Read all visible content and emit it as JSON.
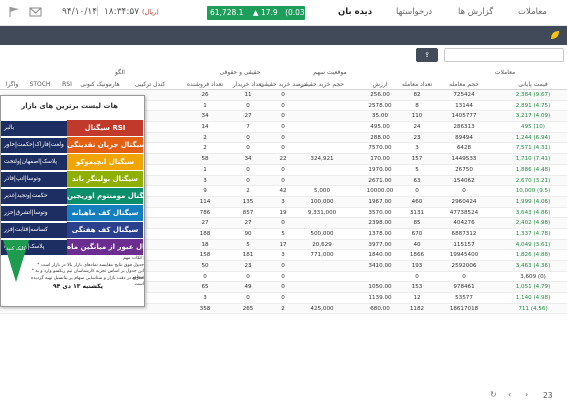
{
  "header": {
    "time": "۱۸:۳۴:۵۷",
    "date": "۹۴/۱۰/۱۴",
    "rial_label": "(ریال)",
    "ticker": {
      "value": "61,728.1",
      "change": "17.9",
      "percent": "(0.03%)"
    },
    "nav": [
      "دیده بان",
      "درخواستها",
      "گزارش ها",
      "معاملات"
    ],
    "icons": [
      "flag-icon",
      "mail-icon"
    ]
  },
  "toolbar": {
    "excel_label": "اکسل",
    "search_placeholder": ""
  },
  "table": {
    "group_headers": {
      "trades": "معاملات",
      "last_orders": "موقعیت سهم",
      "real_legal": "حقیقی و حقوقی",
      "algo": "الگو"
    },
    "columns": [
      "قیمت پایانی",
      "حجم معامله",
      "تعداد معامله",
      "ارزش",
      "حجم خرید حقیقی",
      "درصد خرید حقیقی",
      "تعداد خریدار",
      "تعداد فروشنده",
      "کندل ترکیبی",
      "هارمونیک کنونی",
      "RSI",
      "STOCH",
      "واگرا"
    ],
    "rows": [
      {
        "close": "2,384 (9.67)",
        "vol": "725424",
        "cnt": "82",
        "val": "256.00",
        "rb": "",
        "rp": "0",
        "buyers": "11",
        "sellers": "26",
        "dir": "pos"
      },
      {
        "close": "2,891 (4.75)",
        "vol": "13144",
        "cnt": "8",
        "val": "2578.00",
        "rb": "",
        "rp": "0",
        "buyers": "0",
        "sellers": "1",
        "dir": "pos"
      },
      {
        "close": "3,217 (4.09)",
        "vol": "1405777",
        "cnt": "110",
        "val": "35.00",
        "rb": "",
        "rp": "0",
        "buyers": "27",
        "sellers": "34",
        "dir": "pos"
      },
      {
        "close": "495 (10)",
        "vol": "286313",
        "cnt": "24",
        "val": "495.00",
        "rb": "",
        "rp": "0",
        "buyers": "7",
        "sellers": "14",
        "dir": "pos"
      },
      {
        "close": "1,244 (6.94)",
        "vol": "89494",
        "cnt": "23",
        "val": "288.00",
        "rb": "",
        "rp": "0",
        "buyers": "0",
        "sellers": "2",
        "dir": "pos"
      },
      {
        "close": "7,571 (4.31)",
        "vol": "6428",
        "cnt": "3",
        "val": "7570.00",
        "rb": "",
        "rp": "0",
        "buyers": "0",
        "sellers": "2",
        "dir": "pos"
      },
      {
        "close": "1,710 (7.41)",
        "vol": "1449533",
        "cnt": "157",
        "val": "170.00",
        "rb": "324,921",
        "rp": "22",
        "buyers": "34",
        "sellers": "58",
        "dir": "pos"
      },
      {
        "close": "1,886 (4.48)",
        "vol": "26750",
        "cnt": "5",
        "val": "1970.00",
        "rb": "",
        "rp": "0",
        "buyers": "0",
        "sellers": "1",
        "dir": "pos"
      },
      {
        "close": "2,670 (3.21)",
        "vol": "154062",
        "cnt": "63",
        "val": "2671.00",
        "rb": "",
        "rp": "0",
        "buyers": "0",
        "sellers": "3",
        "dir": "pos"
      },
      {
        "close": "10,000 (9.5)",
        "vol": "0",
        "cnt": "0",
        "val": "10000.00",
        "rb": "5,000",
        "rp": "42",
        "buyers": "2",
        "sellers": "9",
        "dir": "pos"
      },
      {
        "close": "1,999 (4.06)",
        "vol": "2960424",
        "cnt": "460",
        "val": "1967.00",
        "rb": "100,000",
        "rp": "3",
        "buyers": "135",
        "sellers": "114",
        "dir": "pos"
      },
      {
        "close": "3,643 (4.86)",
        "vol": "47738524",
        "cnt": "3131",
        "val": "3570.00",
        "rb": "9,331,000",
        "rp": "19",
        "buyers": "857",
        "sellers": "786",
        "dir": "pos"
      },
      {
        "close": "2,402 (4.98)",
        "vol": "404276",
        "cnt": "85",
        "val": "2398.00",
        "rb": "",
        "rp": "0",
        "buyers": "27",
        "sellers": "27",
        "dir": "pos"
      },
      {
        "close": "1,337 (4.78)",
        "vol": "6887312",
        "cnt": "670",
        "val": "1378.00",
        "rb": "500,000",
        "rp": "5",
        "buyers": "90",
        "sellers": "188",
        "dir": "pos"
      },
      {
        "close": "4,049 (3.61)",
        "vol": "115157",
        "cnt": "40",
        "val": "3977.00",
        "rb": "20,629",
        "rp": "17",
        "buyers": "5",
        "sellers": "18",
        "dir": "pos"
      },
      {
        "close": "1,826 (4.88)",
        "vol": "19945400",
        "cnt": "1866",
        "val": "1840.00",
        "rb": "771,000",
        "rp": "3",
        "buyers": "181",
        "sellers": "158",
        "dir": "pos"
      },
      {
        "close": "3,463 (4.36)",
        "vol": "2592006",
        "cnt": "193",
        "val": "3410.00",
        "rb": "",
        "rp": "0",
        "buyers": "23",
        "sellers": "50",
        "dir": "pos"
      },
      {
        "close": "3,609 (0)",
        "vol": "0",
        "cnt": "0",
        "val": "",
        "rb": "",
        "rp": "0",
        "buyers": "0",
        "sellers": "0",
        "dir": "zero"
      },
      {
        "close": "1,051 (4.79)",
        "vol": "978461",
        "cnt": "153",
        "val": "1050.00",
        "rb": "",
        "rp": "0",
        "buyers": "49",
        "sellers": "65",
        "dir": "pos"
      },
      {
        "close": "1,140 (4.98)",
        "vol": "53577",
        "cnt": "12",
        "val": "1139.00",
        "rb": "",
        "rp": "0",
        "buyers": "0",
        "sellers": "3",
        "dir": "pos"
      },
      {
        "close": "711 (4.56)",
        "vol": "18617018",
        "cnt": "1182",
        "val": "680.00",
        "rb": "425,000",
        "rp": "2",
        "buyers": "265",
        "sellers": "358",
        "dir": "pos"
      }
    ]
  },
  "overlay": {
    "title": "هات لیست برترین های بازار",
    "signals": [
      {
        "label": "سیگنال RSI",
        "color": "#c0392b"
      },
      {
        "label": "سیگنال جریان نقدینگی",
        "color": "#e25f14"
      },
      {
        "label": "سیگنال ایچیموکو",
        "color": "#f0a500"
      },
      {
        "label": "سیگنال بولینگر باند",
        "color": "#8fb000"
      },
      {
        "label": "سیگنال مومنتوم اوریجین",
        "color": "#0a8f6a"
      },
      {
        "label": "سیگنال کف ماهیانه",
        "color": "#137fbf"
      },
      {
        "label": "سیگنال کف هفتگی",
        "color": "#2b3f8f"
      },
      {
        "label": "سیگنال عبور از میانگین ماه",
        "color": "#6b2d8f"
      }
    ],
    "navy_items": [
      "بالبر",
      "ولغت|فاراک|حکمت|خاور",
      "پلاسک|اصفهان|ولتخت",
      "وتوسا|اتپ|فاذر",
      "حکمت|وتجید|غدیر",
      "وتوسا|اتشرق|خزر",
      "کساسه|قثابت|فزر",
      "پلاسک|وپترو|افرا"
    ],
    "notes": [
      "اتکات مهم:",
      "* جدول فوق نتایج مقایسه نمادهای بازار بالا در بازار است",
      "* این جدول بر اساس تجربه کارشناسان تیم ریکسو وارد و به منظور",
      "تسریع در دقت بازار و شناسایی سهام پر پتانسیل تهیه گردیده است"
    ],
    "date": "یکشنبه ۱۳ دی ۹۴",
    "promo_text": "کلیک کنید"
  },
  "footer": {
    "page": "23",
    "prev": "‹",
    "next": "›",
    "refresh": "↻"
  }
}
